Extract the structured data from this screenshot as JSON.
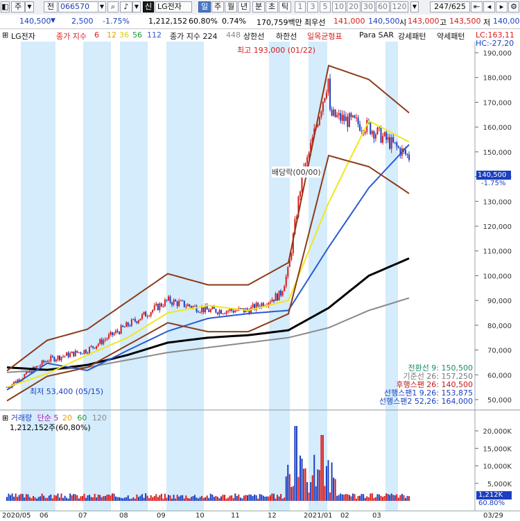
{
  "toolbar": {
    "btn_menu": "▼",
    "btn_ju": "주",
    "btn_jeon": "전",
    "code": "066570",
    "search_icon": "search-icon",
    "sound_icon": "speaker-icon",
    "sin": "신",
    "name": "LG전자",
    "periods": [
      "일",
      "주",
      "월",
      "년",
      "분",
      "초",
      "틱"
    ],
    "selected_period": "일",
    "intervals": [
      "1",
      "3",
      "5",
      "10",
      "20",
      "30",
      "60",
      "120"
    ],
    "range": "247/625"
  },
  "price": {
    "last": "140,500",
    "arrow": "▼",
    "change": "2,500",
    "pct": "-1.75%",
    "volume": "1,212,152",
    "vol_ratio": "60.80%",
    "turnover_pct": "0.74%",
    "amount": "170,759백만",
    "pri_label": "최우선",
    "pri_val": "141,000",
    "ask_val": "140,500",
    "open_label": "시",
    "open_val": "143,000",
    "high_label": "고",
    "high_val": "143,500",
    "low_label": "저",
    "low_val": "140,00"
  },
  "legend": {
    "name": "LG전자",
    "ma_title": "종가 지수",
    "ma1": "6",
    "ma2": "12",
    "ma3": "36",
    "ma4": "56",
    "ma5": "112",
    "ma6_title": "종가 지수 224",
    "ma7": "448",
    "upper": "상한선",
    "lower": "하한선",
    "ichimoku": "일목균형표",
    "psar": "Para SAR",
    "strong": "강세패턴",
    "weak": "약세패턴",
    "lc": "LC:163,11",
    "hc": "HC:-27,20"
  },
  "yaxis": [
    "190,000",
    "180,000",
    "170,000",
    "160,000",
    "150,000",
    "140,000",
    "130,000",
    "120,000",
    "110,000",
    "100,000",
    "90,000",
    "80,000",
    "70,000",
    "60,000",
    "50,000"
  ],
  "current_price_tag": "140,500",
  "current_pct_tag": "-1.75%",
  "annotations": {
    "high": "최고 193,000 (01/22)",
    "low": "최저 53,400 (05/15)",
    "dividend": "배당락(00/00)"
  },
  "ichimoku_values": [
    {
      "label": "전환선 9: 150,500",
      "color": "#1a8a6a"
    },
    {
      "label": "기준선 26: 157,250",
      "color": "#777777"
    },
    {
      "label": "후행스팬 26: 140,500",
      "color": "#c01818"
    },
    {
      "label": "선행스팬1 9,26: 153,875",
      "color": "#1b3fc0"
    },
    {
      "label": "선행스팬2 52,26: 164,000",
      "color": "#1b3fc0"
    }
  ],
  "volume_panel": {
    "title": "거래량",
    "ma_title": "단순 5",
    "ma2": "20",
    "ma3": "60",
    "ma4": "120",
    "value": "1,212,152주(60,80%)",
    "yaxis": [
      "20,000K",
      "15,000K",
      "10,000K",
      "5,000K"
    ],
    "tag_vol": "1,212K",
    "tag_pct": "60.80%"
  },
  "xaxis": [
    "2020/05",
    "06",
    "07",
    "08",
    "09",
    "10",
    "11",
    "12",
    "2021/01",
    "02",
    "03",
    "03/29"
  ],
  "colors": {
    "up": "#d81b1b",
    "down": "#1b3fc0",
    "band": "#d4ecfb",
    "ma_yellow": "#f0e81e",
    "ma_blue": "#2a5ad0",
    "ma_black": "#000000",
    "ma_gray": "#8a8a8a",
    "bollinger": "#8b3a1a"
  },
  "chart_data": {
    "type": "line",
    "title": "LG전자",
    "xlabel": "",
    "ylabel": "",
    "ylim": [
      47000,
      197000
    ],
    "x": [
      "2020/05",
      "06",
      "07",
      "08",
      "09",
      "10",
      "11",
      "12",
      "2021/01",
      "02",
      "03"
    ],
    "series": [
      {
        "name": "LG전자",
        "values": [
          55000,
          66000,
          70000,
          80000,
          90000,
          86000,
          86000,
          94000,
          165000,
          160000,
          148000
        ]
      },
      {
        "name": "224",
        "values": [
          63000,
          62000,
          64000,
          68000,
          73000,
          75000,
          76000,
          78000,
          87000,
          100000,
          107000
        ]
      },
      {
        "name": "448",
        "values": [
          61000,
          62000,
          63000,
          66000,
          69000,
          71000,
          73000,
          75000,
          79000,
          86000,
          91000
        ]
      }
    ]
  }
}
